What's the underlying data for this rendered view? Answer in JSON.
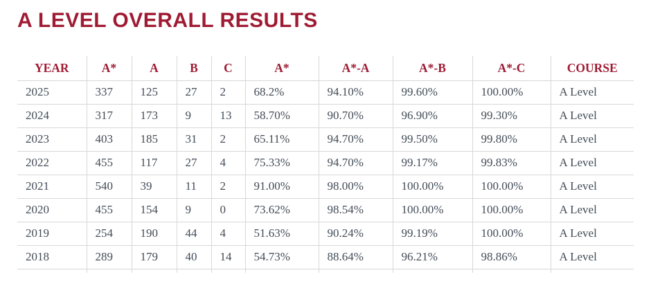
{
  "title": "A LEVEL OVERALL RESULTS",
  "theme": {
    "accent": "#9f1b33",
    "text": "#434c57",
    "border": "#d7d7d7",
    "background": "#ffffff"
  },
  "table": {
    "columns": [
      "YEAR",
      "A*",
      "A",
      "B",
      "C",
      "A*",
      "A*-A",
      "A*-B",
      "A*-C",
      "COURSE"
    ],
    "rows": [
      [
        "2025",
        "337",
        "125",
        "27",
        "2",
        "68.2%",
        "94.10%",
        "99.60%",
        "100.00%",
        "A Level"
      ],
      [
        "2024",
        "317",
        "173",
        "9",
        "13",
        "58.70%",
        "90.70%",
        "96.90%",
        "99.30%",
        "A Level"
      ],
      [
        "2023",
        "403",
        "185",
        "31",
        "2",
        "65.11%",
        "94.70%",
        "99.50%",
        "99.80%",
        "A Level"
      ],
      [
        "2022",
        "455",
        "117",
        "27",
        "4",
        "75.33%",
        "94.70%",
        "99.17%",
        "99.83%",
        "A Level"
      ],
      [
        "2021",
        "540",
        "39",
        "11",
        "2",
        "91.00%",
        "98.00%",
        "100.00%",
        "100.00%",
        "A Level"
      ],
      [
        "2020",
        "455",
        "154",
        "9",
        "0",
        "73.62%",
        "98.54%",
        "100.00%",
        "100.00%",
        "A Level"
      ],
      [
        "2019",
        "254",
        "190",
        "44",
        "4",
        "51.63%",
        "90.24%",
        "99.19%",
        "100.00%",
        "A Level"
      ],
      [
        "2018",
        "289",
        "179",
        "40",
        "14",
        "54.73%",
        "88.64%",
        "96.21%",
        "98.86%",
        "A Level"
      ]
    ]
  }
}
